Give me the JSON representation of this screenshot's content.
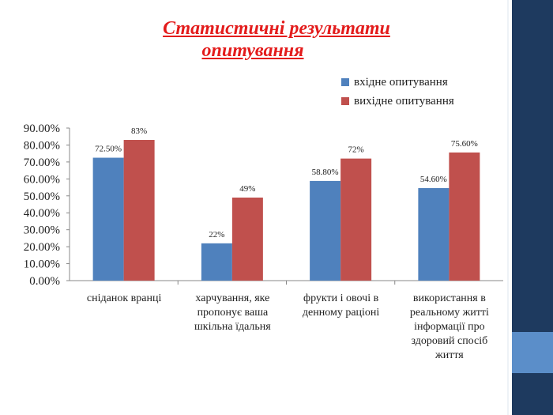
{
  "slide": {
    "title_line1": "Статистичні результати",
    "title_line2": "опитування",
    "sidebar_color": "#1e3a5f",
    "accent_color": "#5b8ec9"
  },
  "chart_data": {
    "type": "bar",
    "title": "",
    "xlabel": "",
    "ylabel": "",
    "ylim": [
      0,
      90
    ],
    "y_tick_labels": [
      "0.00%",
      "10.00%",
      "20.00%",
      "30.00%",
      "40.00%",
      "50.00%",
      "60.00%",
      "70.00%",
      "80.00%",
      "90.00%"
    ],
    "categories": [
      "сніданок вранці",
      "харчування, яке пропонує ваша шкільна їдальня",
      "фрукти і овочі в денному раціоні",
      "використання в реальному житті інформації про здоровий спосіб життя"
    ],
    "series": [
      {
        "name": "вхідне опитування",
        "color": "#4f81bd",
        "values": [
          72.5,
          22,
          58.8,
          54.6
        ],
        "labels": [
          "72.50%",
          "22%",
          "58.80%",
          "54.60%"
        ]
      },
      {
        "name": "вихідне опитування",
        "color": "#c0504d",
        "values": [
          83,
          49,
          72,
          75.6
        ],
        "labels": [
          "83%",
          "49%",
          "72%",
          "75.60%"
        ]
      }
    ],
    "legend_position": "top-right",
    "grid": false
  }
}
